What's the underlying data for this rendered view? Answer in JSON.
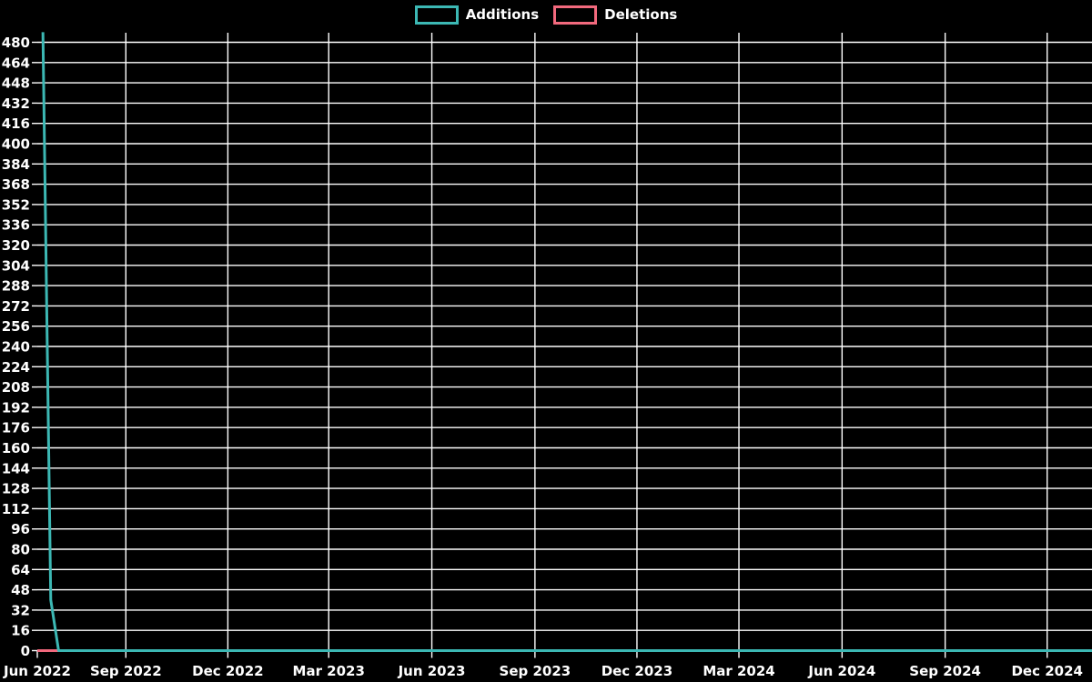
{
  "chart_data": {
    "type": "line",
    "title": "",
    "background_color": "#000000",
    "grid_color": "#ffffff",
    "text_color": "#ffffff",
    "legend": {
      "position": "top-center",
      "style": "outlined-box",
      "entries": [
        {
          "label": "Additions",
          "color": "#3cb8b4"
        },
        {
          "label": "Deletions",
          "color": "#f2697d"
        }
      ]
    },
    "x_domain": [
      "2022-06-14",
      "2025-01-10"
    ],
    "ylim": [
      0,
      488
    ],
    "y_axis": {
      "tick_step": 16,
      "ticks": [
        0,
        16,
        32,
        48,
        64,
        80,
        96,
        112,
        128,
        144,
        160,
        176,
        192,
        208,
        224,
        240,
        256,
        272,
        288,
        304,
        320,
        336,
        352,
        368,
        384,
        400,
        416,
        432,
        448,
        464,
        480
      ]
    },
    "x_axis": {
      "ticks": [
        {
          "label": "Jun 2022",
          "date": "2022-06-14",
          "gridline": false
        },
        {
          "label": "Sep 2022",
          "date": "2022-09-01",
          "gridline": true
        },
        {
          "label": "Dec 2022",
          "date": "2022-12-01",
          "gridline": true
        },
        {
          "label": "Mar 2023",
          "date": "2023-03-01",
          "gridline": true
        },
        {
          "label": "Jun 2023",
          "date": "2023-06-01",
          "gridline": true
        },
        {
          "label": "Sep 2023",
          "date": "2023-09-01",
          "gridline": true
        },
        {
          "label": "Dec 2023",
          "date": "2023-12-01",
          "gridline": true
        },
        {
          "label": "Mar 2024",
          "date": "2024-03-01",
          "gridline": true
        },
        {
          "label": "Jun 2024",
          "date": "2024-06-01",
          "gridline": true
        },
        {
          "label": "Sep 2024",
          "date": "2024-09-01",
          "gridline": true
        },
        {
          "label": "Dec 2024",
          "date": "2024-12-01",
          "gridline": true
        }
      ]
    },
    "series": [
      {
        "name": "Additions",
        "color": "#3cb8b4",
        "points": [
          [
            "2022-06-19",
            488
          ],
          [
            "2022-06-26",
            40
          ],
          [
            "2022-07-03",
            0
          ],
          [
            "2025-01-10",
            0
          ]
        ]
      },
      {
        "name": "Deletions",
        "color": "#f2697d",
        "points": [
          [
            "2022-06-14",
            0
          ],
          [
            "2025-01-10",
            0
          ]
        ]
      }
    ]
  }
}
